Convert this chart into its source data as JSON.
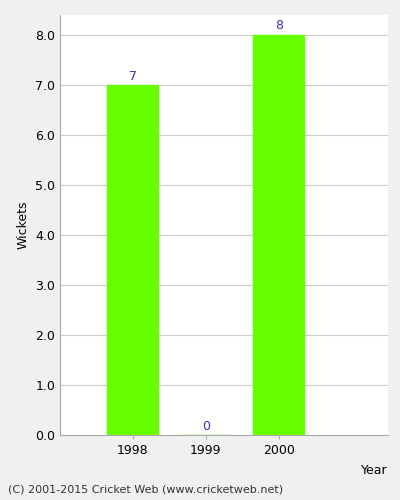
{
  "years": [
    1998,
    1999,
    2000
  ],
  "values": [
    7,
    0,
    8
  ],
  "bar_color": "#66ff00",
  "bar_width": 0.7,
  "xlabel": "Year",
  "ylabel": "Wickets",
  "ylim": [
    0.0,
    8.4
  ],
  "yticks": [
    0.0,
    1.0,
    2.0,
    3.0,
    4.0,
    5.0,
    6.0,
    7.0,
    8.0
  ],
  "label_color": "#3333aa",
  "label_fontsize": 9,
  "axis_label_fontsize": 9,
  "tick_fontsize": 9,
  "footer_text": "(C) 2001-2015 Cricket Web (www.cricketweb.net)",
  "footer_fontsize": 8,
  "background_color": "#f0f0f0",
  "plot_bg_color": "#ffffff",
  "grid_color": "#cccccc",
  "xlim": [
    1997.0,
    2001.5
  ]
}
